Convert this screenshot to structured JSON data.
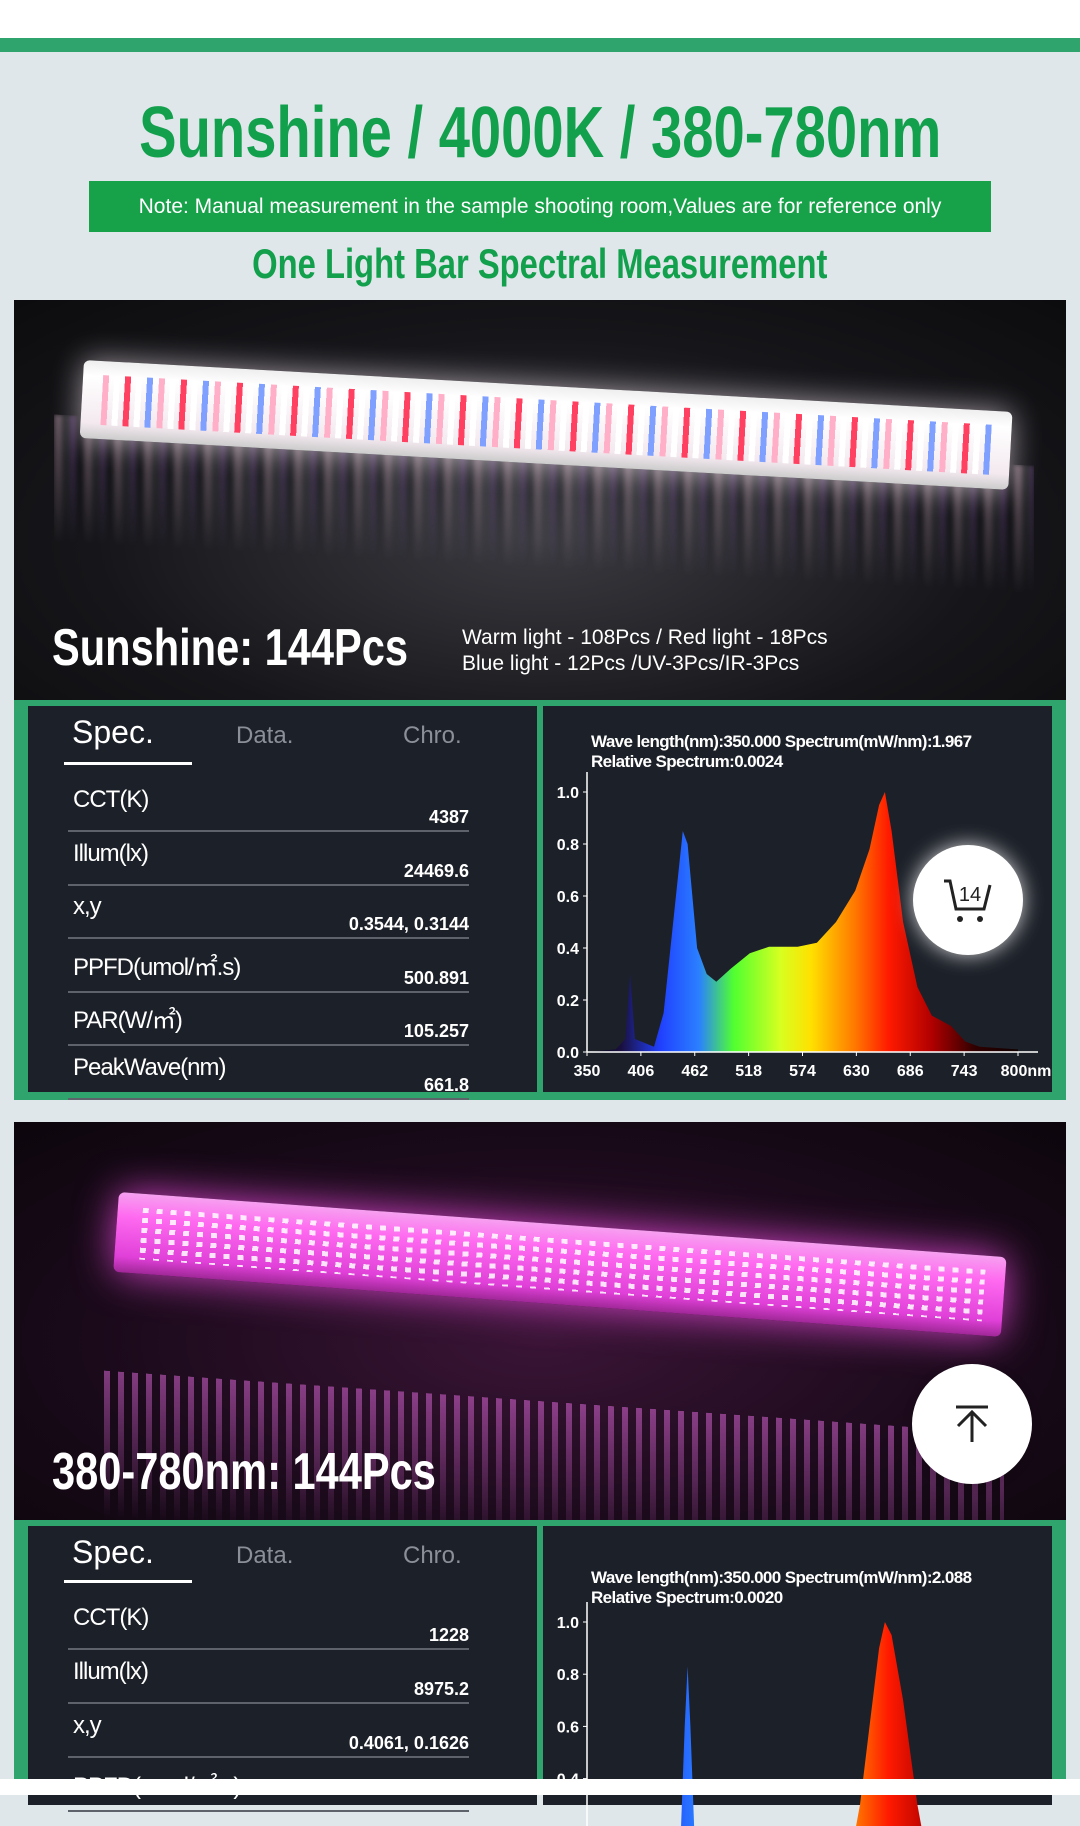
{
  "header": {
    "title": "Sunshine / 4000K / 380-780nm",
    "note": "Note: Manual measurement in the sample shooting room,Values are for reference only",
    "subtitle": "One Light Bar Spectral Measurement"
  },
  "sections": [
    {
      "caption": "Sunshine: 144Pcs",
      "details": [
        "Warm light - 108Pcs / Red light - 18Pcs",
        "Blue light - 12Pcs /UV-3Pcs/IR-3Pcs"
      ],
      "tabs": [
        "Spec.",
        "Data.",
        "Chro."
      ],
      "rows": [
        {
          "label": "CCT(K)",
          "value": "4387"
        },
        {
          "label": "Illum(lx)",
          "value": "24469.6"
        },
        {
          "label": "x,y",
          "value": "0.3544, 0.3144"
        },
        {
          "label": "PPFD(umol/㎡.s)",
          "value": "500.891"
        },
        {
          "label": "PAR(W/㎡)",
          "value": "105.257"
        },
        {
          "label": "PeakWave(nm)",
          "value": "661.8"
        }
      ],
      "chart_head": [
        "Wave length(nm):350.000  Spectrum(mW/nm):1.967",
        "Relative Spectrum:0.0024"
      ]
    },
    {
      "caption": "380-780nm: 144Pcs",
      "tabs": [
        "Spec.",
        "Data.",
        "Chro."
      ],
      "rows": [
        {
          "label": "CCT(K)",
          "value": "1228"
        },
        {
          "label": "Illum(lx)",
          "value": "8975.2"
        },
        {
          "label": "x,y",
          "value": "0.4061, 0.1626"
        },
        {
          "label": "PPFD(umol/㎡.s)",
          "value": ""
        }
      ],
      "chart_head": [
        "Wave length(nm):350.000  Spectrum(mW/nm):2.088",
        "Relative Spectrum:0.0020"
      ]
    }
  ],
  "cart": {
    "count": "14",
    "icon": "cart-icon"
  },
  "back_to_top": {
    "icon": "arrow-up-to-line-icon"
  },
  "colors": {
    "accent": "#2fa46c",
    "title": "#13a04d",
    "note_bg": "#17a24a",
    "panel_bg": "#1c2028"
  },
  "chart_data": [
    {
      "type": "area",
      "xlabel": "",
      "ylabel": "",
      "xlim": [
        350,
        800
      ],
      "ylim": [
        0,
        1.0
      ],
      "x_ticks": [
        "350",
        "406",
        "462",
        "518",
        "574",
        "630",
        "686",
        "743",
        "800nm"
      ],
      "y_ticks": [
        "0.0",
        "0.2",
        "0.4",
        "0.6",
        "0.8",
        "1.0"
      ],
      "x": [
        350,
        380,
        390,
        395,
        400,
        420,
        430,
        440,
        450,
        455,
        465,
        475,
        485,
        500,
        520,
        540,
        570,
        590,
        610,
        630,
        645,
        655,
        661,
        668,
        680,
        695,
        710,
        720,
        730,
        745,
        760,
        800
      ],
      "values": [
        0,
        0.01,
        0.05,
        0.3,
        0.05,
        0.02,
        0.15,
        0.5,
        0.85,
        0.8,
        0.4,
        0.3,
        0.27,
        0.32,
        0.38,
        0.405,
        0.405,
        0.42,
        0.5,
        0.62,
        0.78,
        0.95,
        1.0,
        0.85,
        0.5,
        0.25,
        0.14,
        0.12,
        0.1,
        0.04,
        0.02,
        0.01
      ]
    },
    {
      "type": "area",
      "xlabel": "",
      "ylabel": "",
      "xlim": [
        350,
        800
      ],
      "ylim": [
        0,
        1.0
      ],
      "y_ticks": [
        "0.4",
        "0.6",
        "0.8",
        "1.0"
      ],
      "x": [
        350,
        440,
        448,
        452,
        455,
        458,
        462,
        470,
        620,
        635,
        645,
        655,
        661,
        668,
        680,
        695,
        710,
        800
      ],
      "values": [
        0,
        0,
        0.2,
        0.6,
        0.83,
        0.6,
        0.2,
        0,
        0,
        0.3,
        0.6,
        0.9,
        1.0,
        0.95,
        0.7,
        0.3,
        0,
        0
      ]
    }
  ]
}
